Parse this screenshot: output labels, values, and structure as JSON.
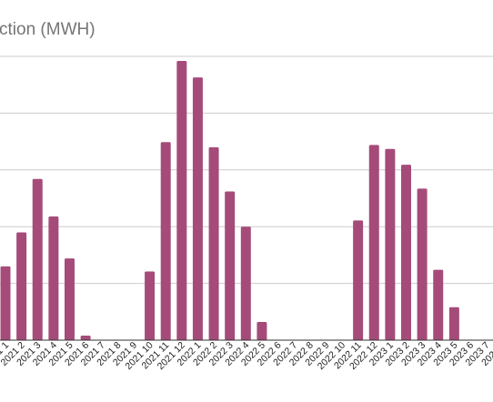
{
  "chart_data": {
    "type": "bar",
    "title": "ction (MWH)",
    "xlabel": "",
    "ylabel": "",
    "ylim": [
      0,
      5
    ],
    "grid": true,
    "bar_color": "#a54b7a",
    "categories": [
      "2021 1",
      "2021 2",
      "2021 3",
      "2021 4",
      "2021 5",
      "2021 6",
      "2021 7",
      "2021 8",
      "2021 9",
      "2021 10",
      "2021 11",
      "2021 12",
      "2022 1",
      "2022 2",
      "2022 3",
      "2022 4",
      "2022 5",
      "2022 6",
      "2022 7",
      "2022 8",
      "2022 9",
      "2022 10",
      "2022 11",
      "2022 12",
      "2023 1",
      "2023 2",
      "2023 3",
      "2023 4",
      "2023 5",
      "2023 6",
      "2023 7",
      "2023 8"
    ],
    "values": [
      1.3,
      1.9,
      2.84,
      2.18,
      1.44,
      0.08,
      0,
      0,
      0,
      1.21,
      3.49,
      4.92,
      4.63,
      3.4,
      2.62,
      2.0,
      0.32,
      0,
      0,
      0,
      0,
      0,
      2.11,
      3.44,
      3.37,
      3.09,
      2.67,
      1.24,
      0.58,
      0,
      0,
      0
    ]
  }
}
